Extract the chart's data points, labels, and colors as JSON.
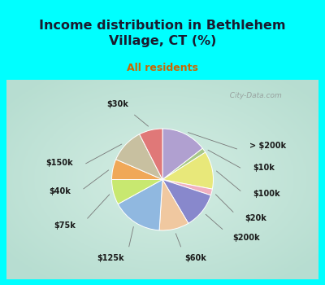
{
  "title": "Income distribution in Bethlehem\nVillage, CT (%)",
  "subtitle": "All residents",
  "bg_color": "#00ffff",
  "labels": [
    "> $200k",
    "$10k",
    "$100k",
    "$20k",
    "$200k",
    "$60k",
    "$125k",
    "$75k",
    "$40k",
    "$150k",
    "$30k"
  ],
  "sizes": [
    14.5,
    1.5,
    12.0,
    2.0,
    11.5,
    9.5,
    16.0,
    8.0,
    6.5,
    11.0,
    7.5
  ],
  "colors": [
    "#b0a0d0",
    "#a8c888",
    "#e8e87a",
    "#f0b0c0",
    "#8888cc",
    "#f0c8a0",
    "#90b8e0",
    "#c8e870",
    "#f0a858",
    "#c8c0a0",
    "#e07878"
  ],
  "title_color": "#1a1a2e",
  "subtitle_color": "#cc6600",
  "label_color": "#1a1a1a",
  "watermark": "  City-Data.com",
  "startangle": 90
}
